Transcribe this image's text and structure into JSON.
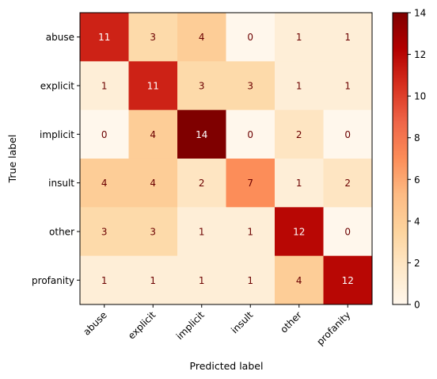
{
  "chart_data": {
    "type": "heatmap",
    "xlabel": "Predicted label",
    "ylabel": "True label",
    "x_categories": [
      "abuse",
      "explicit",
      "implicit",
      "insult",
      "other",
      "profanity"
    ],
    "y_categories": [
      "abuse",
      "explicit",
      "implicit",
      "insult",
      "other",
      "profanity"
    ],
    "values": [
      [
        11,
        3,
        4,
        0,
        1,
        1
      ],
      [
        1,
        11,
        3,
        3,
        1,
        1
      ],
      [
        0,
        4,
        14,
        0,
        2,
        0
      ],
      [
        4,
        4,
        2,
        7,
        1,
        2
      ],
      [
        3,
        3,
        1,
        1,
        12,
        0
      ],
      [
        1,
        1,
        1,
        1,
        4,
        12
      ]
    ],
    "colorscale": "OrRd",
    "vmin": 0,
    "vmax": 14,
    "colorbar_ticks": [
      "0",
      "2",
      "4",
      "6",
      "8",
      "10",
      "12",
      "14"
    ],
    "grid": false,
    "colorbar_position": "right"
  }
}
